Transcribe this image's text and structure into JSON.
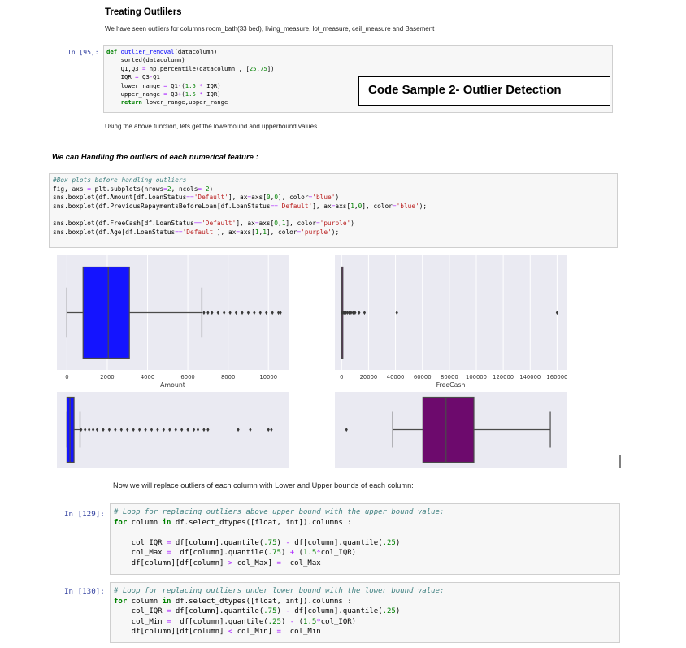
{
  "section1": {
    "heading": "Treating Outlilers",
    "intro": "We have seen outliers for columns room_bath(33 bed), living_measure, lot_measure, ceil_measure and Basement",
    "cell_prompt": "In [95]:",
    "callout": "Code Sample 2- Outlier Detection",
    "after_text": "Using the above function, lets get the lowerbound and upperbound values"
  },
  "section2": {
    "heading": "We can Handling the outliers of each numerical feature :"
  },
  "section3": {
    "text": "Now we will replace outliers of each column with Lower and Upper bounds of each column:",
    "cell1_prompt": "In [129]:",
    "cell2_prompt": "In [130]:"
  },
  "chart_data": [
    {
      "type": "box",
      "xlabel": "Amount",
      "xticks": [
        "0",
        "2000",
        "4000",
        "6000",
        "8000",
        "10000"
      ],
      "xlim": [
        -500,
        11000
      ],
      "color": "#1414ff",
      "whisker_low": 0,
      "q1": 800,
      "median": 2050,
      "q3": 3100,
      "whisker_high": 6700,
      "outliers": [
        6800,
        7000,
        7200,
        7500,
        7800,
        8100,
        8400,
        8700,
        9000,
        9300,
        9600,
        9900,
        10200,
        10500,
        10600
      ]
    },
    {
      "type": "box",
      "xlabel": "FreeCash",
      "xticks": [
        "0",
        "20000",
        "40000",
        "60000",
        "80000",
        "100000",
        "120000",
        "140000",
        "160000"
      ],
      "xlim": [
        -5000,
        167000
      ],
      "color": "#800080",
      "whisker_low": 0,
      "q1": 0,
      "median": 0,
      "q3": 0,
      "whisker_high": 0,
      "outliers": [
        500,
        1200,
        2000,
        3000,
        4200,
        5500,
        7000,
        8500,
        10000,
        13000,
        17000,
        41000,
        160000
      ]
    },
    {
      "type": "box",
      "xlabel": "",
      "xticks": [],
      "xlim": [
        -500,
        11000
      ],
      "color": "#1414ff",
      "whisker_low": 0,
      "q1": 0,
      "median": 150,
      "q3": 350,
      "whisker_high": 650,
      "outliers": [
        700,
        900,
        1100,
        1300,
        1500,
        1800,
        2100,
        2400,
        2700,
        3000,
        3300,
        3600,
        3900,
        4200,
        4500,
        4800,
        5100,
        5400,
        5700,
        6000,
        6300,
        6500,
        6800,
        7000,
        8500,
        9100,
        10000,
        10150
      ]
    },
    {
      "type": "box",
      "xlabel": "",
      "xticks": [],
      "xlim": [
        0,
        100
      ],
      "color": "#6d0a6d",
      "whisker_low": 25,
      "q1": 38,
      "median": 48,
      "q3": 60,
      "whisker_high": 93,
      "outliers": [
        5
      ]
    }
  ]
}
